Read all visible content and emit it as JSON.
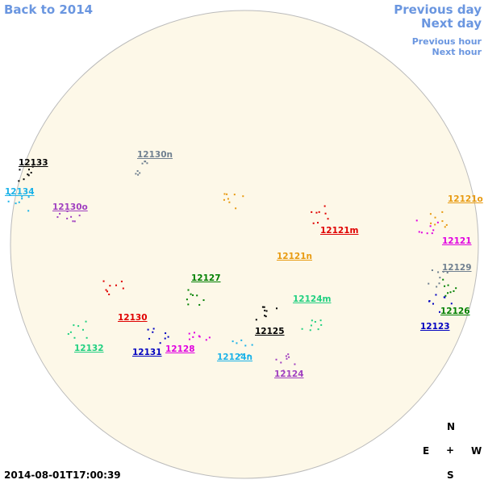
{
  "nav": {
    "back": "Back to 2014",
    "previous_day": "Previous day",
    "next_day": "Next day",
    "previous_hour": "Previous hour",
    "next_hour": "Next hour"
  },
  "regions": [
    {
      "label": "12133",
      "color": "#000000"
    },
    {
      "label": "12134",
      "color": "#1ab2e8"
    },
    {
      "label": "12130n",
      "color": "#708090"
    },
    {
      "label": "12130o",
      "color": "#a040c0"
    },
    {
      "label": "12121o",
      "color": "#e89a10"
    },
    {
      "label": "12121m",
      "color": "#e00000"
    },
    {
      "label": "12121",
      "color": "#e000e0"
    },
    {
      "label": "12121n",
      "color": "#e89a10"
    },
    {
      "label": "12129",
      "color": "#708090"
    },
    {
      "label": "12127",
      "color": "#008000"
    },
    {
      "label": "12124m",
      "color": "#20d080"
    },
    {
      "label": "12126",
      "color": "#008000"
    },
    {
      "label": "12123",
      "color": "#0000c0"
    },
    {
      "label": "12130",
      "color": "#e00000"
    },
    {
      "label": "12125",
      "color": "#000000"
    },
    {
      "label": "12132",
      "color": "#20d080"
    },
    {
      "label": "12131",
      "color": "#0000c0"
    },
    {
      "label": "12128",
      "color": "#e000e0"
    },
    {
      "label": "12124n",
      "color": "#1ab2e8"
    },
    {
      "label": "12124",
      "color": "#a040c0"
    }
  ],
  "compass": {
    "north": "N",
    "east": "E",
    "center": "+",
    "west": "W",
    "south": "S"
  },
  "timestamp": "2014-08-01T17:00:39"
}
